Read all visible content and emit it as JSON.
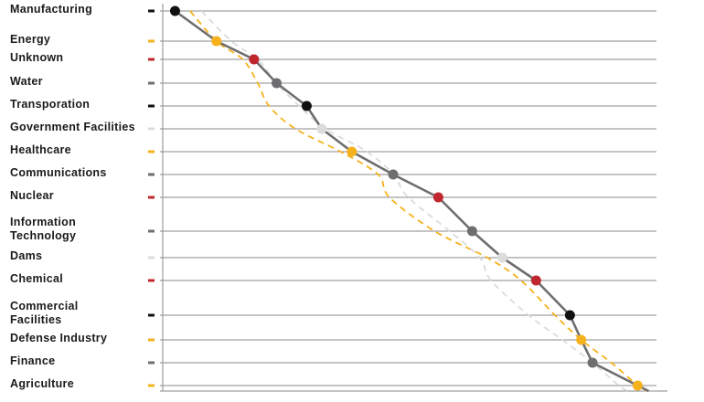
{
  "chart_data": {
    "type": "line",
    "categories": [
      "Manufacturing",
      "Energy",
      "Unknown",
      "Water",
      "Transporation",
      "Government Facilities",
      "Healthcare",
      "Communications",
      "Nuclear",
      "Information Technology",
      "Dams",
      "Chemical",
      "Commercial Facilities",
      "Defense Industry",
      "Finance",
      "Agriculture"
    ],
    "category_colors": [
      "#111111",
      "#f5b21d",
      "#c0262d",
      "#6e6e70",
      "#111111",
      "#dcdcdc",
      "#f5b21d",
      "#6e6e70",
      "#c0262d",
      "#6e6e70",
      "#dcdcdc",
      "#c0262d",
      "#111111",
      "#f5b21d",
      "#6e6e70",
      "#f5b21d"
    ],
    "series": [
      {
        "style": "solid",
        "color": "#6e6e70",
        "markers": true,
        "x": [
          0.02,
          0.13,
          0.23,
          0.29,
          0.37,
          0.41,
          0.49,
          0.6,
          0.72,
          0.81,
          0.89,
          0.98,
          1.07,
          1.1,
          1.13,
          1.25
        ]
      },
      {
        "style": "dashed",
        "color": "#f5b21d",
        "markers": false,
        "x": [
          0.06,
          0.13,
          0.2,
          0.24,
          0.27,
          0.34,
          0.46,
          0.56,
          0.59,
          0.71,
          0.85,
          0.94,
          1.03,
          1.1,
          1.18,
          1.25
        ]
      },
      {
        "style": "dashed",
        "color": "#dcdcdc",
        "markers": false,
        "x": [
          0.09,
          0.17,
          0.24,
          0.29,
          0.35,
          0.42,
          0.53,
          0.6,
          0.64,
          0.75,
          0.83,
          0.86,
          0.96,
          1.05,
          1.13,
          1.2
        ]
      }
    ],
    "xlim": [
      -0.02,
      1.3
    ],
    "grid": true,
    "title": "",
    "xlabel": "",
    "ylabel": ""
  }
}
